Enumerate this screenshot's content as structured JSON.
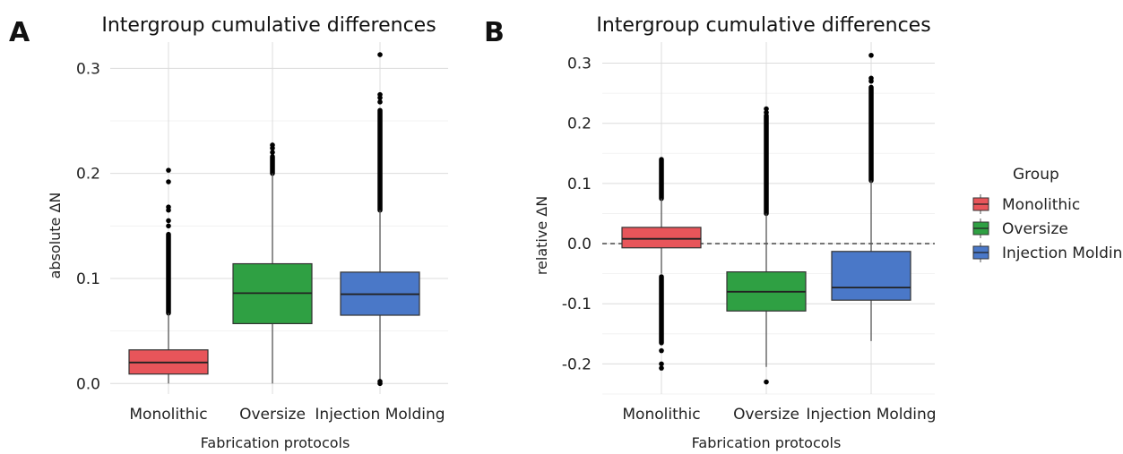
{
  "legend": {
    "title": "Group",
    "items": [
      "Monolithic",
      "Oversize",
      "Injection Molding"
    ]
  },
  "colors": {
    "Monolithic": "#e8555a",
    "Oversize": "#2fa043",
    "Injection Molding": "#4a78c8"
  },
  "chart_data": [
    {
      "panel": "A",
      "type": "box",
      "title": "Intergroup cumulative differences",
      "xlabel": "Fabrication protocols",
      "ylabel": "absolute ΔN",
      "ylim": [
        -0.01,
        0.325
      ],
      "yticks": [
        "0.0",
        "0.1",
        "0.2",
        "0.3"
      ],
      "ytick_values": [
        0.0,
        0.1,
        0.2,
        0.3
      ],
      "reference_line": null,
      "categories": [
        "Monolithic",
        "Oversize",
        "Injection Molding"
      ],
      "series": [
        {
          "name": "Monolithic",
          "min": 0.0,
          "q1": 0.009,
          "median": 0.02,
          "q3": 0.032,
          "max": 0.067,
          "outlier_range": [
            0.067,
            0.142
          ],
          "outliers": [
            0.15,
            0.155,
            0.165,
            0.168,
            0.192,
            0.203
          ]
        },
        {
          "name": "Oversize",
          "min": 0.0,
          "q1": 0.057,
          "median": 0.086,
          "q3": 0.114,
          "max": 0.2,
          "outlier_range": [
            0.2,
            0.216
          ],
          "outliers": [
            0.22,
            0.224,
            0.227
          ]
        },
        {
          "name": "Injection Molding",
          "min": 0.003,
          "q1": 0.065,
          "median": 0.085,
          "q3": 0.106,
          "max": 0.165,
          "outlier_range": [
            0.165,
            0.26
          ],
          "outliers": [
            0.268,
            0.272,
            0.275,
            0.313,
            0.0,
            0.002
          ]
        }
      ]
    },
    {
      "panel": "B",
      "type": "box",
      "title": "Intergroup cumulative differences",
      "xlabel": "Fabrication protocols",
      "ylabel": "relative ΔN",
      "ylim": [
        -0.25,
        0.335
      ],
      "yticks": [
        "-0.2",
        "-0.1",
        "0.0",
        "0.1",
        "0.2",
        "0.3"
      ],
      "ytick_values": [
        -0.2,
        -0.1,
        0.0,
        0.1,
        0.2,
        0.3
      ],
      "reference_line": 0.0,
      "categories": [
        "Monolithic",
        "Oversize",
        "Injection Molding"
      ],
      "series": [
        {
          "name": "Monolithic",
          "min": -0.05,
          "q1": -0.007,
          "median": 0.008,
          "q3": 0.027,
          "max": 0.075,
          "outlier_range_low": [
            -0.165,
            -0.055
          ],
          "outlier_range_high": [
            0.075,
            0.14
          ],
          "outliers": [
            -0.178,
            -0.2,
            -0.207
          ]
        },
        {
          "name": "Oversize",
          "min": -0.205,
          "q1": -0.112,
          "median": -0.08,
          "q3": -0.047,
          "max": 0.05,
          "outlier_range_high": [
            0.05,
            0.213
          ],
          "outliers": [
            -0.23,
            0.218,
            0.224
          ]
        },
        {
          "name": "Injection Molding",
          "min": -0.162,
          "q1": -0.094,
          "median": -0.073,
          "q3": -0.013,
          "max": 0.105,
          "outlier_range_high": [
            0.105,
            0.26
          ],
          "outliers": [
            0.27,
            0.275,
            0.313
          ]
        }
      ]
    }
  ]
}
